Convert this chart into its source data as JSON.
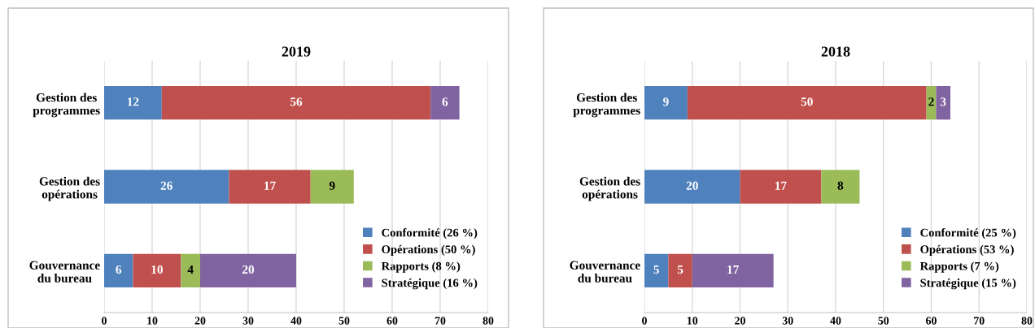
{
  "chart_data": [
    {
      "type": "bar",
      "orientation": "horizontal",
      "stacked": true,
      "title": "2019",
      "categories": [
        "Gestion des\nprogrammes",
        "Gestion des\nopérations",
        "Gouvernance\ndu bureau"
      ],
      "series": [
        {
          "name": "Conformité (26 %)",
          "color": "#4f81bd",
          "values": [
            12,
            26,
            6
          ]
        },
        {
          "name": "Opérations (50 %)",
          "color": "#c0504d",
          "values": [
            56,
            17,
            10
          ]
        },
        {
          "name": "Rapports (8 %)",
          "color": "#9bbb59",
          "values": [
            null,
            9,
            4
          ]
        },
        {
          "name": "Stratégique (16 %)",
          "color": "#8064a2",
          "values": [
            6,
            null,
            20
          ]
        }
      ],
      "xlim": [
        0,
        80
      ],
      "xticks": [
        0,
        10,
        20,
        30,
        40,
        50,
        60,
        70,
        80
      ],
      "grid": "x",
      "legend": "bottom right",
      "data_labels": true
    },
    {
      "type": "bar",
      "orientation": "horizontal",
      "stacked": true,
      "title": "2018",
      "categories": [
        "Gestion des\nprogrammes",
        "Gestion des\nopérations",
        "Gouvernance\ndu bureau"
      ],
      "series": [
        {
          "name": "Conformité (25 %)",
          "color": "#4f81bd",
          "values": [
            9,
            20,
            5
          ]
        },
        {
          "name": "Opérations (53 %)",
          "color": "#c0504d",
          "values": [
            50,
            17,
            5
          ]
        },
        {
          "name": "Rapports (7 %)",
          "color": "#9bbb59",
          "values": [
            2,
            8,
            null
          ]
        },
        {
          "name": "Stratégique (15 %)",
          "color": "#8064a2",
          "values": [
            3,
            null,
            17
          ]
        }
      ],
      "xlim": [
        0,
        80
      ],
      "xticks": [
        0,
        10,
        20,
        30,
        40,
        50,
        60,
        70,
        80
      ],
      "grid": "x",
      "legend": "bottom right",
      "data_labels": true
    }
  ]
}
